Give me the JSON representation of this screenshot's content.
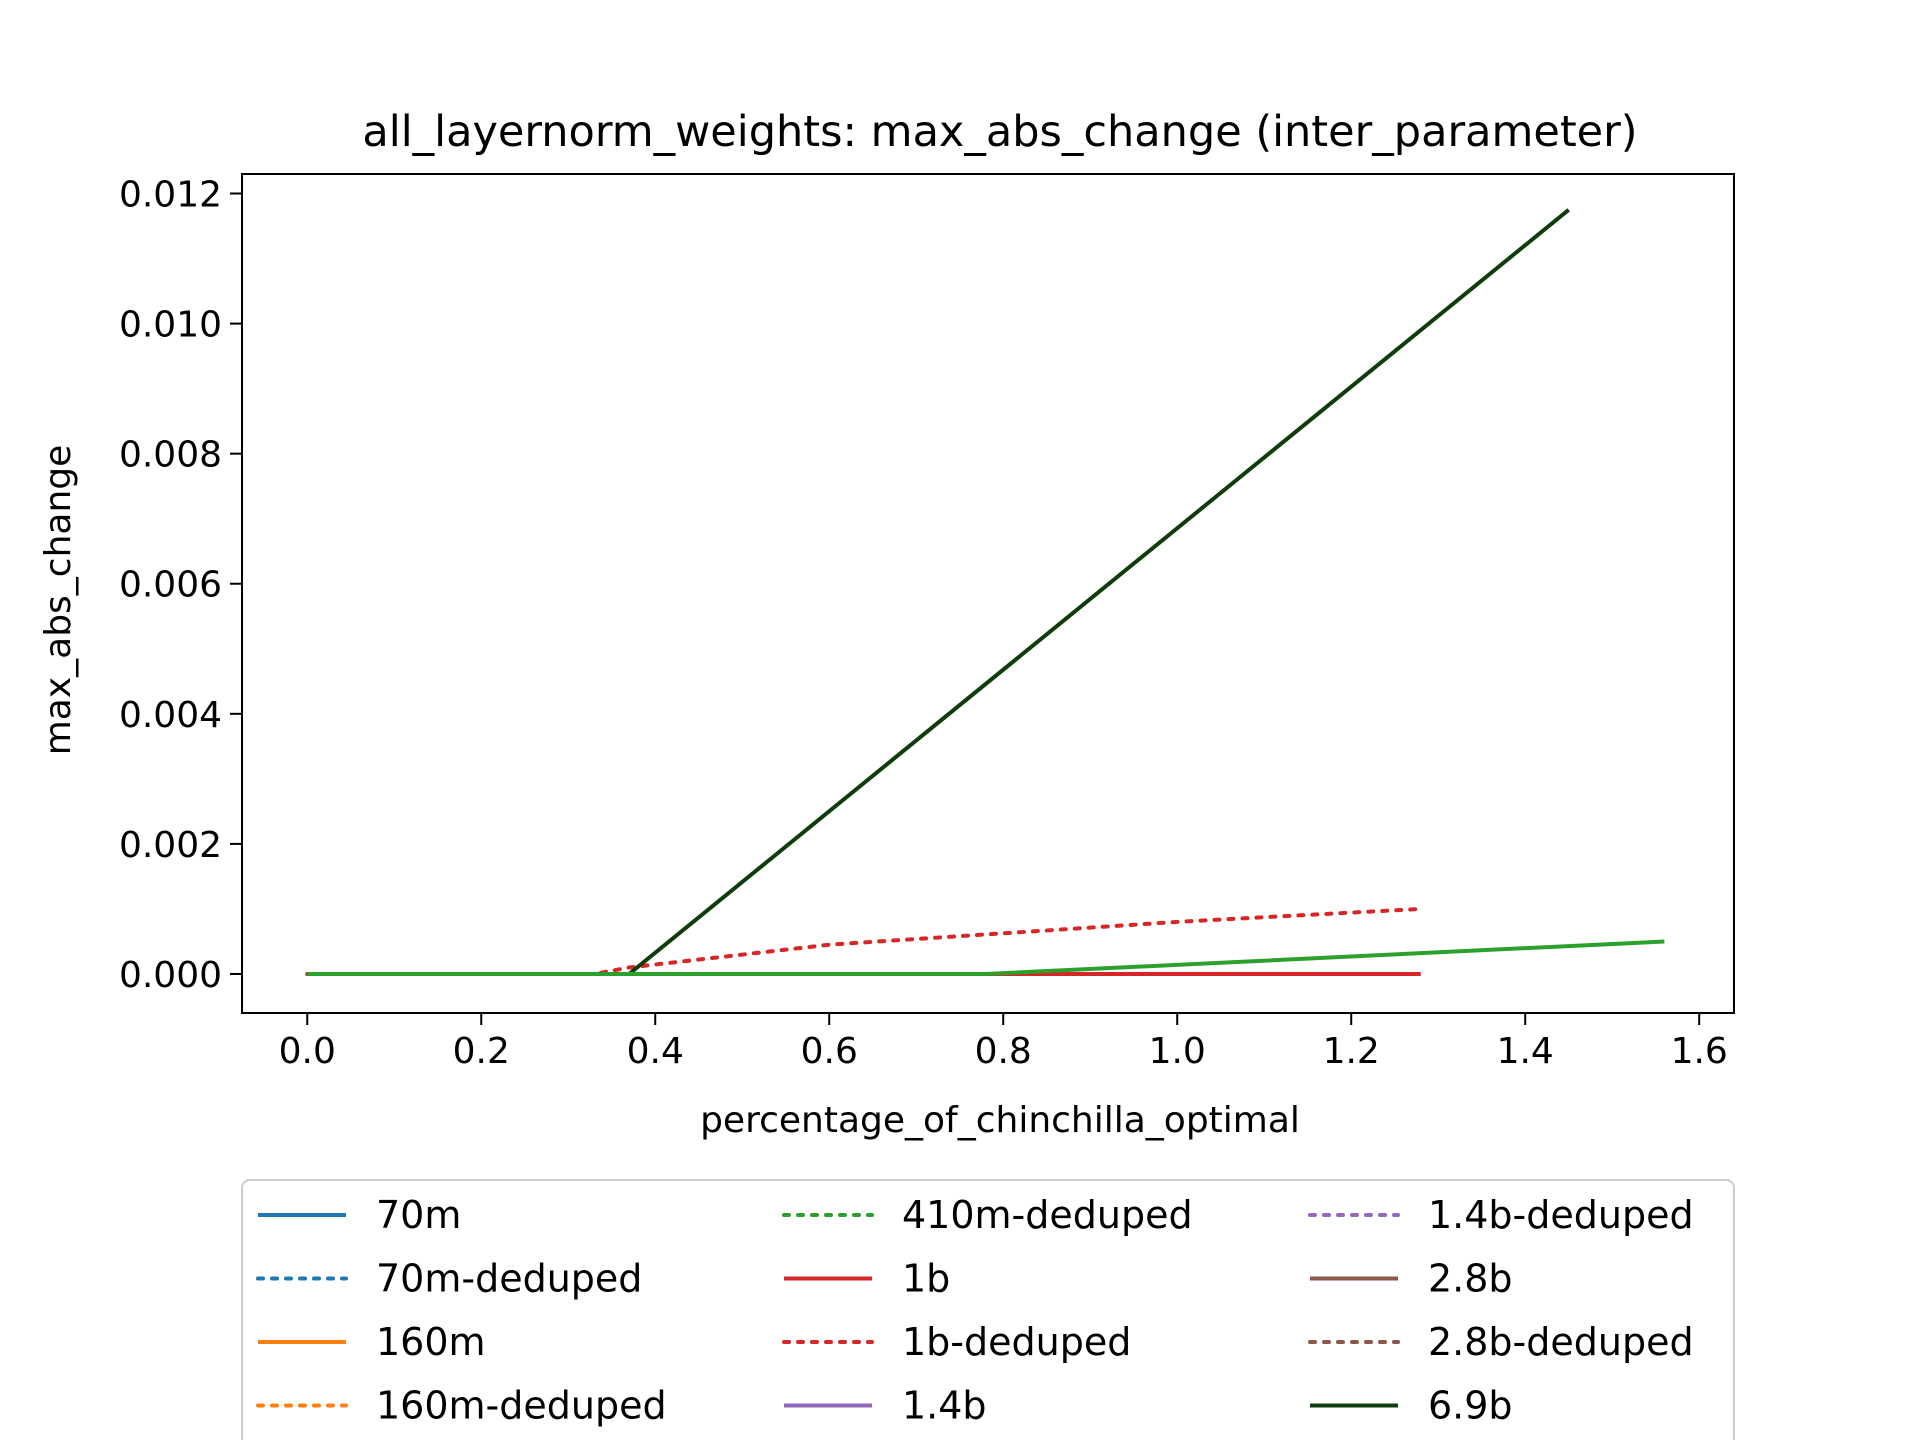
{
  "chart_data": {
    "type": "line",
    "title": "all_layernorm_weights: max_abs_change (inter_parameter)",
    "xlabel": "percentage_of_chinchilla_optimal",
    "ylabel": "max_abs_change",
    "xlim": [
      -0.075,
      1.64
    ],
    "ylim": [
      -0.0006,
      0.0123
    ],
    "xticks": [
      "0.0",
      "0.2",
      "0.4",
      "0.6",
      "0.8",
      "1.0",
      "1.2",
      "1.4",
      "1.6"
    ],
    "yticks": [
      "0.000",
      "0.002",
      "0.004",
      "0.006",
      "0.008",
      "0.010",
      "0.012"
    ],
    "grid": false,
    "legend_position": "bottom, below plot, 3 columns",
    "series": [
      {
        "name": "70m",
        "color": "#1f77b4",
        "style": "solid",
        "x": [],
        "y": []
      },
      {
        "name": "70m-deduped",
        "color": "#1f77b4",
        "style": "dotted",
        "x": [],
        "y": []
      },
      {
        "name": "160m",
        "color": "#ff7f0e",
        "style": "solid",
        "x": [],
        "y": []
      },
      {
        "name": "160m-deduped",
        "color": "#ff7f0e",
        "style": "dotted",
        "x": [],
        "y": []
      },
      {
        "name": "410m-deduped",
        "color": "#2ca02c",
        "style": "dotted",
        "x": [],
        "y": []
      },
      {
        "name": "1b",
        "color": "#d62728",
        "style": "solid",
        "x": [
          0.0,
          0.37,
          0.78,
          1.28
        ],
        "y": [
          0.0,
          0.0,
          0.0,
          0.0
        ]
      },
      {
        "name": "1b-deduped",
        "color": "#d62728",
        "style": "dotted",
        "x": [
          0.0,
          0.33,
          0.37,
          0.6,
          1.0,
          1.28
        ],
        "y": [
          0.0,
          0.0,
          0.0001,
          0.00045,
          0.0008,
          0.001
        ]
      },
      {
        "name": "1.4b",
        "color": "#9467bd",
        "style": "solid",
        "x": [],
        "y": []
      },
      {
        "name": "1.4b-deduped",
        "color": "#9467bd",
        "style": "dotted",
        "x": [],
        "y": []
      },
      {
        "name": "2.8b",
        "color": "#8c564b",
        "style": "solid",
        "x": [],
        "y": []
      },
      {
        "name": "2.8b-deduped",
        "color": "#8c564b",
        "style": "dotted",
        "x": [],
        "y": []
      },
      {
        "name": "6.9b",
        "color": "#0e3d0b",
        "style": "solid",
        "x": [
          0.0,
          0.37,
          1.45
        ],
        "y": [
          0.0,
          0.0,
          0.01175
        ]
      },
      {
        "name": "",
        "color": "#2ca02c",
        "style": "solid",
        "legend": false,
        "x": [
          0.0,
          0.78,
          1.56
        ],
        "y": [
          0.0,
          0.0,
          0.0005
        ]
      }
    ]
  }
}
